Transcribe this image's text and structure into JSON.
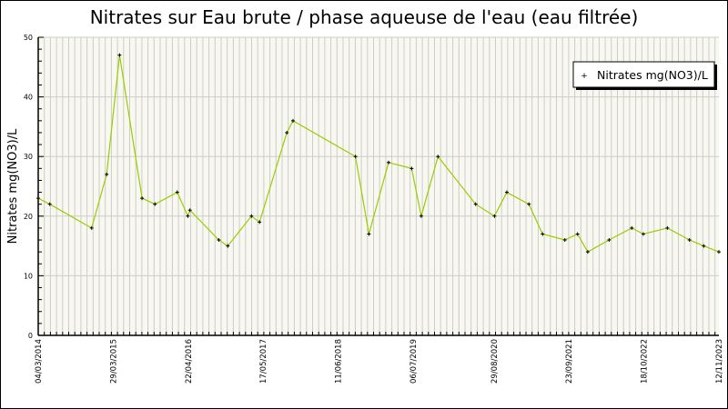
{
  "chart_data": {
    "type": "line",
    "title": "Nitrates sur Eau brute / phase aqueuse de l'eau (eau filtrée)",
    "xlabel": "",
    "ylabel": "Nitrates mg(NO3)/L",
    "ylim": [
      0,
      50
    ],
    "yticks": [
      0,
      10,
      20,
      30,
      40,
      50
    ],
    "xlim": [
      "2014-03-04",
      "2023-11-12"
    ],
    "xticks": [
      {
        "date": "2014-03-04",
        "label": "04/03/2014"
      },
      {
        "date": "2015-03-29",
        "label": "29/03/2015"
      },
      {
        "date": "2016-04-22",
        "label": "22/04/2016"
      },
      {
        "date": "2017-05-17",
        "label": "17/05/2017"
      },
      {
        "date": "2018-06-11",
        "label": "11/06/2018"
      },
      {
        "date": "2019-07-06",
        "label": "06/07/2019"
      },
      {
        "date": "2020-08-29",
        "label": "29/08/2020"
      },
      {
        "date": "2021-09-23",
        "label": "23/09/2021"
      },
      {
        "date": "2022-10-18",
        "label": "18/10/2022"
      },
      {
        "date": "2023-11-12",
        "label": "12/11/2023"
      }
    ],
    "grid": true,
    "legend_position": "top-right",
    "series": [
      {
        "name": "Nitrates mg(NO3)/L",
        "color": "#99cc00",
        "points": [
          {
            "x": "2014-03-04",
            "y": 23
          },
          {
            "x": "2014-05-03",
            "y": 22
          },
          {
            "x": "2014-12-07",
            "y": 18
          },
          {
            "x": "2015-02-23",
            "y": 27
          },
          {
            "x": "2015-05-01",
            "y": 47
          },
          {
            "x": "2015-08-26",
            "y": 23
          },
          {
            "x": "2015-11-01",
            "y": 22
          },
          {
            "x": "2016-02-25",
            "y": 24
          },
          {
            "x": "2016-04-20",
            "y": 20
          },
          {
            "x": "2016-05-01",
            "y": 21
          },
          {
            "x": "2016-09-28",
            "y": 16
          },
          {
            "x": "2016-11-14",
            "y": 15
          },
          {
            "x": "2017-03-17",
            "y": 20
          },
          {
            "x": "2017-04-28",
            "y": 19
          },
          {
            "x": "2017-09-17",
            "y": 34
          },
          {
            "x": "2017-10-19",
            "y": 36
          },
          {
            "x": "2018-09-09",
            "y": 30
          },
          {
            "x": "2018-11-18",
            "y": 17
          },
          {
            "x": "2019-02-28",
            "y": 29
          },
          {
            "x": "2019-06-28",
            "y": 28
          },
          {
            "x": "2019-08-17",
            "y": 20
          },
          {
            "x": "2019-11-12",
            "y": 30
          },
          {
            "x": "2020-05-26",
            "y": 22
          },
          {
            "x": "2020-09-01",
            "y": 20
          },
          {
            "x": "2020-11-04",
            "y": 24
          },
          {
            "x": "2021-02-27",
            "y": 22
          },
          {
            "x": "2021-05-09",
            "y": 17
          },
          {
            "x": "2021-09-02",
            "y": 16
          },
          {
            "x": "2021-11-07",
            "y": 17
          },
          {
            "x": "2021-12-30",
            "y": 14
          },
          {
            "x": "2022-04-20",
            "y": 16
          },
          {
            "x": "2022-08-16",
            "y": 18
          },
          {
            "x": "2022-10-15",
            "y": 17
          },
          {
            "x": "2023-02-17",
            "y": 18
          },
          {
            "x": "2023-06-12",
            "y": 16
          },
          {
            "x": "2023-08-25",
            "y": 15
          },
          {
            "x": "2023-11-12",
            "y": 14
          }
        ]
      }
    ],
    "colors": {
      "plot_background": "#f8f8f0",
      "grid": "#cccccc",
      "line": "#99cc00",
      "marker": "#000000"
    }
  }
}
